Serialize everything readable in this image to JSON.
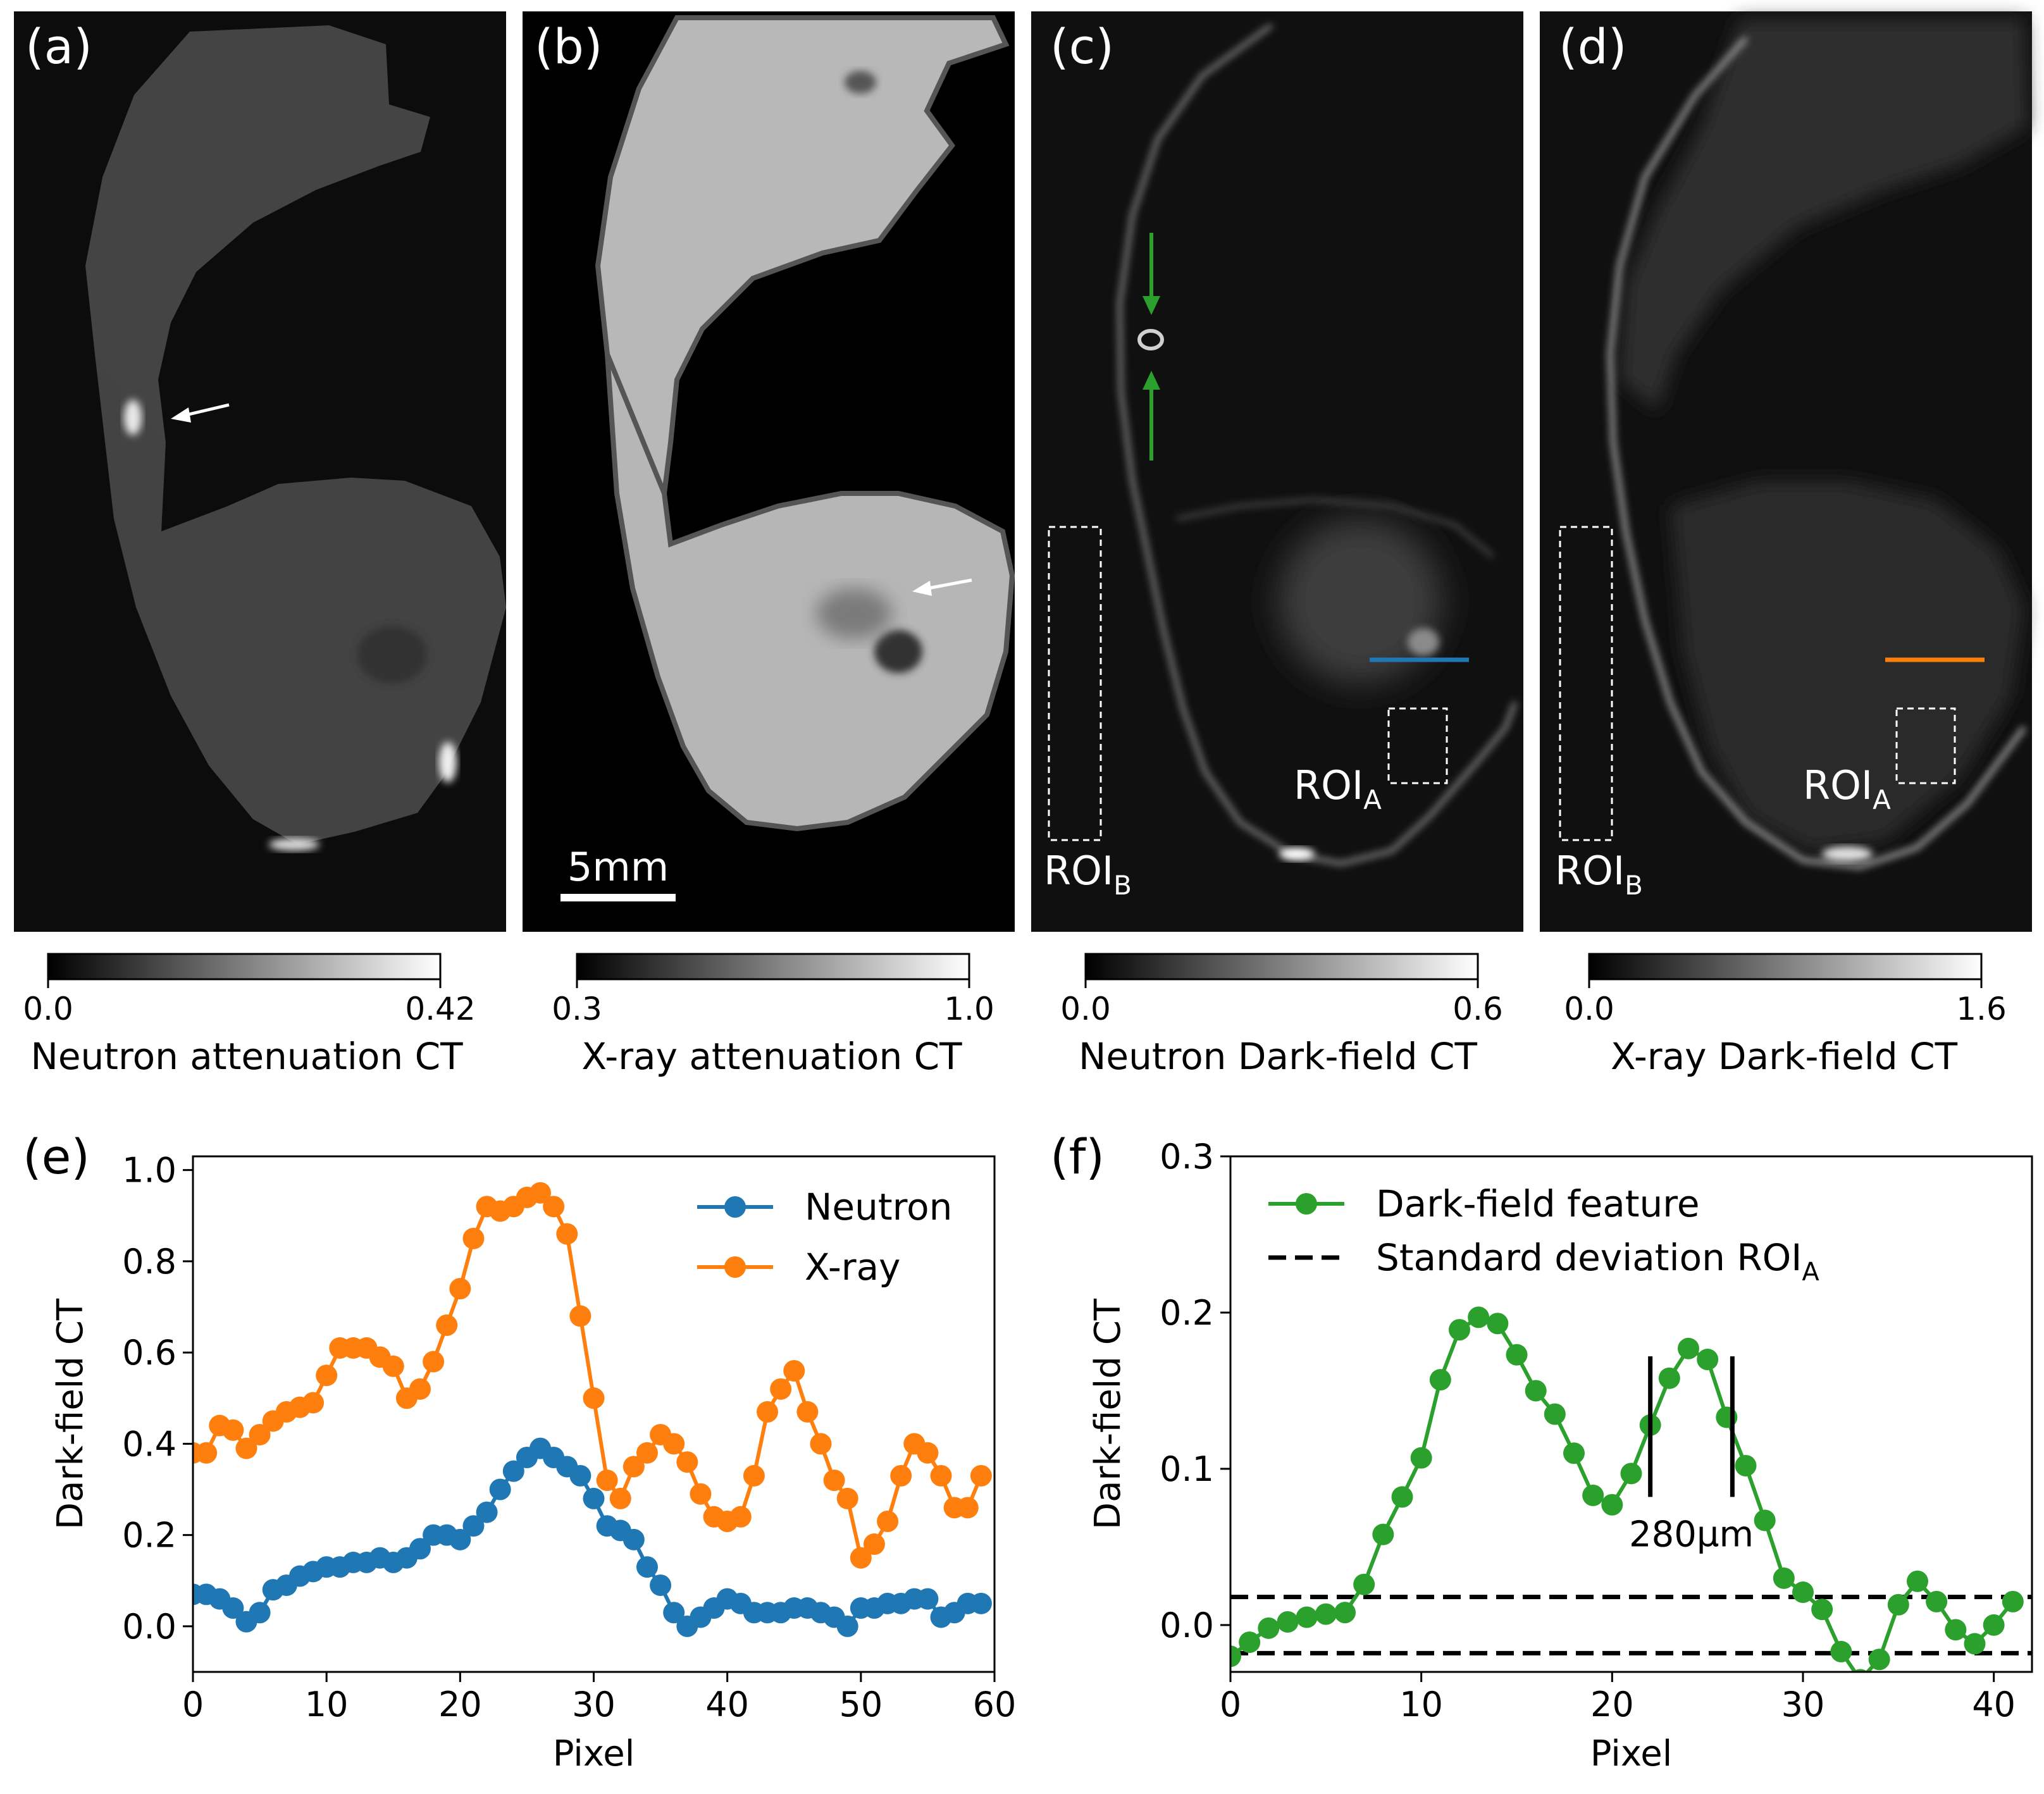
{
  "panels": {
    "a": {
      "label": "(a)",
      "colorbar": {
        "min": "0.0",
        "max": "0.42",
        "title": "Neutron attenuation CT"
      }
    },
    "b": {
      "label": "(b)",
      "colorbar": {
        "min": "0.3",
        "max": "1.0",
        "title": "X-ray attenuation CT"
      },
      "scalebar": "5mm"
    },
    "c": {
      "label": "(c)",
      "colorbar": {
        "min": "0.0",
        "max": "0.6",
        "title": "Neutron Dark-field CT"
      },
      "roi_a_main": "ROI",
      "roi_a_sub": "A",
      "roi_b_main": "ROI",
      "roi_b_sub": "B"
    },
    "d": {
      "label": "(d)",
      "colorbar": {
        "min": "0.0",
        "max": "1.6",
        "title": "X-ray Dark-field CT"
      },
      "roi_a_main": "ROI",
      "roi_a_sub": "A",
      "roi_b_main": "ROI",
      "roi_b_sub": "B"
    },
    "e": {
      "label": "(e)"
    },
    "f": {
      "label": "(f)",
      "annotation": "280µm"
    }
  },
  "colors": {
    "neutron": "#1f77b4",
    "xray": "#ff7f0e",
    "feature": "#2ca02c"
  },
  "chart_data": [
    {
      "type": "line",
      "panel": "e",
      "xlabel": "Pixel",
      "ylabel": "Dark-field CT",
      "xlim": [
        0,
        60
      ],
      "ylim": [
        -0.1,
        1.03
      ],
      "xticks": [
        0,
        10,
        20,
        30,
        40,
        50,
        60
      ],
      "yticks": [
        0.0,
        0.2,
        0.4,
        0.6,
        0.8,
        1.0
      ],
      "xtick_labels": [
        "0",
        "10",
        "20",
        "30",
        "40",
        "50",
        "60"
      ],
      "ytick_labels": [
        "0.0",
        "0.2",
        "0.4",
        "0.6",
        "0.8",
        "1.0"
      ],
      "legend_position": "top-right",
      "series": [
        {
          "name": "Neutron",
          "color": "#1f77b4",
          "values": [
            0.07,
            0.07,
            0.06,
            0.04,
            0.01,
            0.03,
            0.08,
            0.09,
            0.11,
            0.12,
            0.13,
            0.13,
            0.14,
            0.14,
            0.15,
            0.14,
            0.15,
            0.17,
            0.2,
            0.2,
            0.19,
            0.22,
            0.25,
            0.3,
            0.34,
            0.37,
            0.39,
            0.37,
            0.35,
            0.33,
            0.28,
            0.22,
            0.21,
            0.19,
            0.13,
            0.09,
            0.03,
            0.0,
            0.02,
            0.04,
            0.06,
            0.05,
            0.03,
            0.03,
            0.03,
            0.04,
            0.04,
            0.03,
            0.02,
            0.0,
            0.04,
            0.04,
            0.05,
            0.05,
            0.06,
            0.06,
            0.02,
            0.03,
            0.05,
            0.05
          ]
        },
        {
          "name": "X-ray",
          "color": "#ff7f0e",
          "values": [
            0.38,
            0.38,
            0.44,
            0.43,
            0.39,
            0.42,
            0.45,
            0.47,
            0.48,
            0.49,
            0.55,
            0.61,
            0.61,
            0.61,
            0.59,
            0.57,
            0.5,
            0.52,
            0.58,
            0.66,
            0.74,
            0.85,
            0.92,
            0.91,
            0.92,
            0.94,
            0.95,
            0.92,
            0.86,
            0.68,
            0.5,
            0.32,
            0.28,
            0.35,
            0.38,
            0.42,
            0.4,
            0.36,
            0.29,
            0.24,
            0.23,
            0.24,
            0.33,
            0.47,
            0.52,
            0.56,
            0.47,
            0.4,
            0.32,
            0.28,
            0.15,
            0.18,
            0.23,
            0.33,
            0.4,
            0.38,
            0.33,
            0.26,
            0.26,
            0.33
          ]
        }
      ]
    },
    {
      "type": "line",
      "panel": "f",
      "xlabel": "Pixel",
      "ylabel": "Dark-field CT",
      "xlim": [
        0,
        42
      ],
      "ylim": [
        -0.03,
        0.3
      ],
      "xticks": [
        0,
        10,
        20,
        30,
        40
      ],
      "yticks": [
        0.0,
        0.1,
        0.2,
        0.3
      ],
      "xtick_labels": [
        "0",
        "10",
        "20",
        "30",
        "40"
      ],
      "ytick_labels": [
        "0.0",
        "0.1",
        "0.2",
        "0.3"
      ],
      "legend_position": "top-left",
      "series": [
        {
          "name": "Dark-field feature",
          "color": "#2ca02c",
          "values": [
            -0.02,
            -0.011,
            -0.002,
            0.002,
            0.005,
            0.007,
            0.008,
            0.026,
            0.058,
            0.082,
            0.107,
            0.157,
            0.189,
            0.197,
            0.193,
            0.173,
            0.15,
            0.135,
            0.11,
            0.083,
            0.077,
            0.097,
            0.128,
            0.158,
            0.177,
            0.17,
            0.133,
            0.102,
            0.067,
            0.03,
            0.021,
            0.01,
            -0.017,
            -0.035,
            -0.022,
            0.013,
            0.028,
            0.015,
            -0.003,
            -0.012,
            0.0,
            0.015
          ]
        }
      ],
      "std_lines": {
        "name_main": "Standard deviation ROI",
        "name_sub": "A",
        "values": [
          0.018,
          -0.018
        ]
      },
      "markers": {
        "x": [
          22,
          26.3
        ],
        "ymin": 0.082,
        "ymax": 0.172
      }
    }
  ]
}
